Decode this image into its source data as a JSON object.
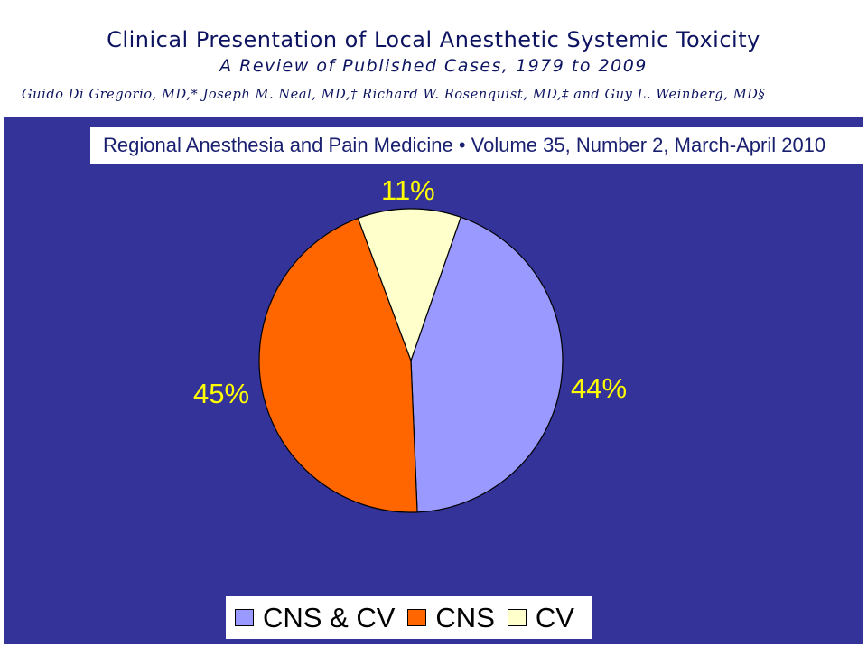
{
  "header": {
    "title": "Clinical Presentation of Local Anesthetic Systemic Toxicity",
    "subtitle": "A Review of Published Cases, 1979 to 2009",
    "authors": "Guido Di Gregorio, MD,* Joseph M. Neal, MD,† Richard W. Rosenquist, MD,‡ and Guy L. Weinberg, MD§"
  },
  "journal_banner": "Regional Anesthesia and Pain Medicine  •  Volume 35, Number 2, March-April 2010",
  "colors": {
    "slide_background": "#333399",
    "label_color": "#ffff00",
    "cns_and_cv": "#9999ff",
    "cns": "#ff6600",
    "cv": "#ffffcc"
  },
  "chart_data": {
    "type": "pie",
    "title": "",
    "series": [
      {
        "name": "CNS & CV",
        "value": 44,
        "label": "44%",
        "color": "#9999ff"
      },
      {
        "name": "CNS",
        "value": 45,
        "label": "45%",
        "color": "#ff6600"
      },
      {
        "name": "CV",
        "value": 11,
        "label": "11%",
        "color": "#ffffcc"
      }
    ],
    "legend": {
      "position": "bottom",
      "entries": [
        "CNS & CV",
        "CNS",
        "CV"
      ]
    }
  }
}
